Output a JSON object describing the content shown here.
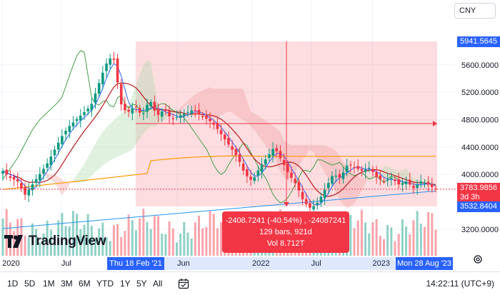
{
  "currency": "CNY",
  "logo": "TradingView",
  "colors": {
    "up": "#089981",
    "down": "#f23645",
    "measure_bg": "#f23645",
    "conversion": "#2962ff",
    "base": "#b71c1c",
    "lagging": "#43a047",
    "cloud_bear": "#ef9a9a",
    "cloud_bull": "#a5d6a7",
    "ma_orange": "#ff9800",
    "ma_blue": "#2196f3"
  },
  "price_labels": [
    {
      "text": "5600.0000",
      "value": 5600
    },
    {
      "text": "5200.0000",
      "value": 5200
    },
    {
      "text": "4800.0000",
      "value": 4800
    },
    {
      "text": "4400.0000",
      "value": 4400
    },
    {
      "text": "4000.0000",
      "value": 4000
    },
    {
      "text": "3200.0000",
      "value": 3200
    }
  ],
  "price_tags": {
    "top": "5941.5645",
    "current": "3783.9856",
    "countdown": "3d 3h",
    "bottom": "3532.8404"
  },
  "time_labels": [
    {
      "text": "2020",
      "pos": 0.005
    },
    {
      "text": "Jul",
      "pos": 0.135
    },
    {
      "text": "Jun",
      "pos": 0.39
    },
    {
      "text": "2022",
      "pos": 0.555
    },
    {
      "text": "Jul",
      "pos": 0.685
    },
    {
      "text": "2023",
      "pos": 0.82
    }
  ],
  "date_tags": {
    "start": "Thu 18 Feb '21",
    "end": "Mon 28 Aug '23"
  },
  "measure": {
    "line1": "-2408.7241 (-40.54%) , -24087241",
    "line2": "129 bars, 921d",
    "line3": "Vol 8.712T"
  },
  "range_buttons": [
    "1D",
    "5D",
    "1M",
    "3M",
    "6M",
    "YTD",
    "1Y",
    "5Y",
    "All"
  ],
  "clock": "14:22:11 (UTC+9)",
  "chart_data": {
    "type": "candlestick",
    "title": "",
    "ylim": [
      3100,
      6100
    ],
    "y_ticks": [
      3200,
      4000,
      4400,
      4800,
      5200,
      5600
    ],
    "grid": true,
    "close_anchors": [
      [
        0,
        4050
      ],
      [
        10,
        3950
      ],
      [
        20,
        3900
      ],
      [
        30,
        3700
      ],
      [
        40,
        3850
      ],
      [
        50,
        4000
      ],
      [
        60,
        4150
      ],
      [
        70,
        4350
      ],
      [
        80,
        4550
      ],
      [
        90,
        4700
      ],
      [
        100,
        4800
      ],
      [
        110,
        4900
      ],
      [
        120,
        5000
      ],
      [
        130,
        5300
      ],
      [
        140,
        5600
      ],
      [
        150,
        5750
      ],
      [
        155,
        5450
      ],
      [
        160,
        5050
      ],
      [
        165,
        4950
      ],
      [
        170,
        4900
      ],
      [
        180,
        5000
      ],
      [
        190,
        4850
      ],
      [
        200,
        5100
      ],
      [
        210,
        4850
      ],
      [
        220,
        4950
      ],
      [
        230,
        4800
      ],
      [
        240,
        4850
      ],
      [
        250,
        4900
      ],
      [
        260,
        4950
      ],
      [
        270,
        4850
      ],
      [
        280,
        4800
      ],
      [
        290,
        4700
      ],
      [
        300,
        4550
      ],
      [
        310,
        4400
      ],
      [
        320,
        4250
      ],
      [
        330,
        4000
      ],
      [
        340,
        3900
      ],
      [
        350,
        4100
      ],
      [
        360,
        4250
      ],
      [
        370,
        4400
      ],
      [
        380,
        4200
      ],
      [
        390,
        4000
      ],
      [
        400,
        3850
      ],
      [
        410,
        3600
      ],
      [
        420,
        3500
      ],
      [
        430,
        3600
      ],
      [
        440,
        3800
      ],
      [
        450,
        4000
      ],
      [
        460,
        3950
      ],
      [
        470,
        4150
      ],
      [
        480,
        4100
      ],
      [
        490,
        4050
      ],
      [
        500,
        4100
      ],
      [
        510,
        3950
      ],
      [
        520,
        3900
      ],
      [
        530,
        3950
      ],
      [
        540,
        3850
      ],
      [
        550,
        3900
      ],
      [
        560,
        3800
      ],
      [
        570,
        3900
      ],
      [
        580,
        3850
      ],
      [
        590,
        3784
      ]
    ],
    "measure_range": {
      "from": "Thu 18 Feb '21",
      "to": "Mon 28 Aug '23",
      "high": 5941.5645,
      "low": 3532.8404,
      "change": -2408.7241,
      "change_pct": -40.54,
      "bars": 129,
      "days": 921,
      "volume": "8.712T"
    },
    "last_price": 3783.9856
  }
}
